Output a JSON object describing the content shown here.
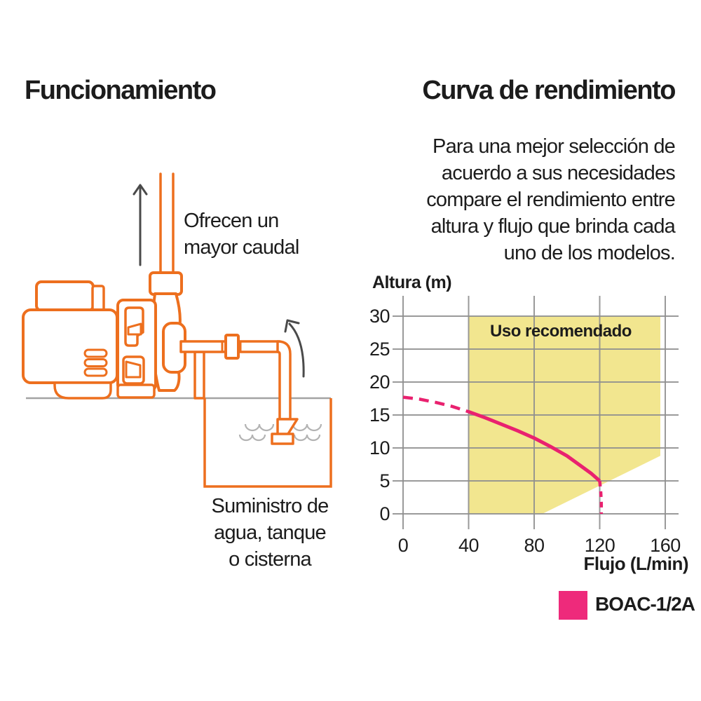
{
  "page": {
    "background": "#FFFFFF"
  },
  "left_section": {
    "title": "Funcionamiento",
    "flow_caption": "Ofrecen un\nmayor caudal",
    "supply_caption": "Suministro de\nagua, tanque\no cisterna"
  },
  "right_section": {
    "title": "Curva de rendimiento",
    "intro": "Para una mejor selección de\nacuerdo a sus necesidades\ncompare el rendimiento entre\naltura y flujo que brinda cada\nuno de los modelos."
  },
  "chart_data": {
    "type": "line",
    "title": "",
    "xlabel": "Flujo (L/min)",
    "ylabel": "Altura (m)",
    "x_ticks": [
      0,
      40,
      80,
      120,
      160
    ],
    "y_ticks": [
      0,
      5,
      10,
      15,
      20,
      25,
      30
    ],
    "xlim": [
      0,
      168
    ],
    "ylim": [
      0,
      33
    ],
    "grid": true,
    "grid_color": "#8F8F8F",
    "tick_color": "#1D1D1D",
    "recommended_area": {
      "label": "Uso recomendado",
      "color": "#F2E68F",
      "polygon": [
        [
          40,
          0
        ],
        [
          40,
          30
        ],
        [
          157,
          30
        ],
        [
          157,
          8.8
        ],
        [
          85,
          0
        ]
      ]
    },
    "series": [
      {
        "name": "BOAC-1/2A",
        "color": "#E9216F",
        "dashed_lead": [
          [
            0,
            17.7
          ],
          [
            10,
            17.4
          ],
          [
            20,
            16.9
          ],
          [
            30,
            16.3
          ],
          [
            40,
            15.5
          ]
        ],
        "solid": [
          [
            40,
            15.5
          ],
          [
            50,
            14.6
          ],
          [
            60,
            13.6
          ],
          [
            70,
            12.6
          ],
          [
            80,
            11.5
          ],
          [
            90,
            10.2
          ],
          [
            100,
            8.8
          ],
          [
            110,
            7.0
          ],
          [
            115,
            6.1
          ],
          [
            120,
            5.0
          ]
        ],
        "dashed_drop": [
          [
            120,
            5.0
          ],
          [
            120.7,
            3.2
          ],
          [
            121,
            1.6
          ],
          [
            121,
            0
          ]
        ]
      }
    ],
    "legend": {
      "position": "bottom-right",
      "items": [
        {
          "label": "BOAC-1/2A",
          "color": "#EE2A7B"
        }
      ]
    }
  },
  "illustration": {
    "pump_color": "#ED6F1E",
    "water_color": "#B3B3B3",
    "ground_color": "#A3A3A3",
    "arrow_color": "#4A4A4A"
  }
}
